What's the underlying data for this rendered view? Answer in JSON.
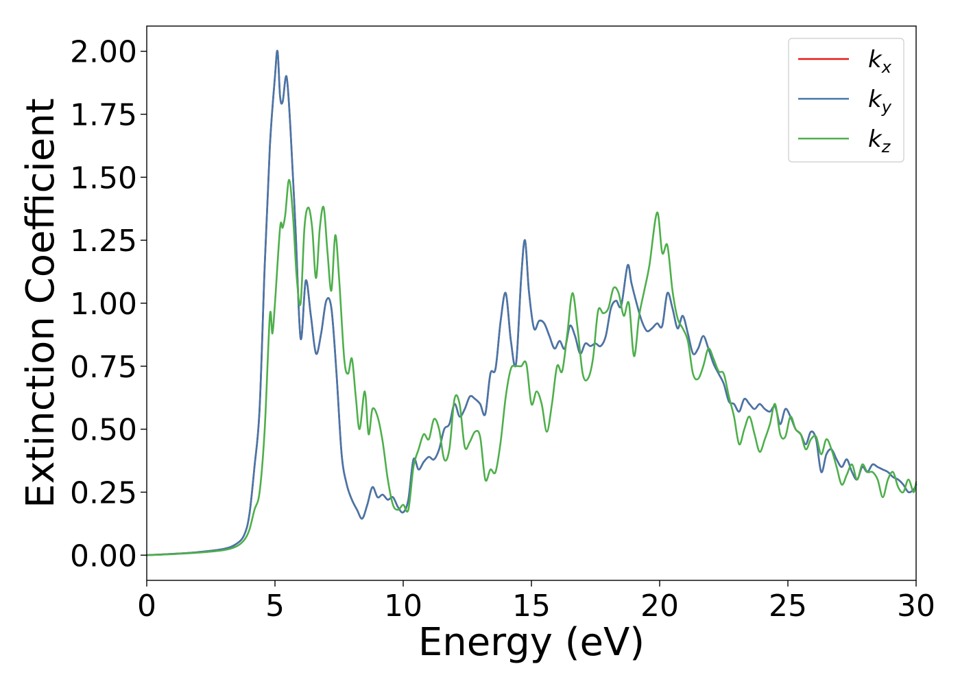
{
  "chart_data": {
    "type": "line",
    "xlabel": "Energy (eV)",
    "ylabel": "Extinction Coefficient",
    "xlim": [
      0,
      30
    ],
    "ylim": [
      -0.1,
      2.1
    ],
    "xticks": [
      0,
      5,
      10,
      15,
      20,
      25,
      30
    ],
    "xtick_labels": [
      "0",
      "5",
      "10",
      "15",
      "20",
      "25",
      "30"
    ],
    "yticks": [
      0,
      0.25,
      0.5,
      0.75,
      1.0,
      1.25,
      1.5,
      1.75,
      2.0
    ],
    "ytick_labels": [
      "0.00",
      "0.25",
      "0.50",
      "0.75",
      "1.00",
      "1.25",
      "1.50",
      "1.75",
      "2.00"
    ],
    "grid": false,
    "legend_position": "top-right",
    "series": [
      {
        "name": "k_x",
        "label_main": "k",
        "label_sub": "x",
        "color": "#e41a1c",
        "x": [
          0,
          1,
          2,
          3,
          3.5,
          3.8,
          4.0,
          4.2,
          4.4,
          4.6,
          4.8,
          5.0,
          5.1,
          5.2,
          5.3,
          5.45,
          5.6,
          5.8,
          6.0,
          6.2,
          6.4,
          6.6,
          6.8,
          7.0,
          7.2,
          7.4,
          7.6,
          7.8,
          8.0,
          8.2,
          8.4,
          8.6,
          8.8,
          9.0,
          9.2,
          9.4,
          9.6,
          9.8,
          10.0,
          10.2,
          10.4,
          10.6,
          10.8,
          11.0,
          11.2,
          11.4,
          11.6,
          11.8,
          12.0,
          12.2,
          12.4,
          12.6,
          12.8,
          13.0,
          13.2,
          13.4,
          13.6,
          13.8,
          14.0,
          14.2,
          14.4,
          14.6,
          14.75,
          14.9,
          15.1,
          15.3,
          15.5,
          15.7,
          15.9,
          16.1,
          16.3,
          16.5,
          16.7,
          16.9,
          17.1,
          17.3,
          17.5,
          17.7,
          17.9,
          18.1,
          18.3,
          18.5,
          18.75,
          18.9,
          19.1,
          19.3,
          19.5,
          19.7,
          19.9,
          20.1,
          20.3,
          20.5,
          20.7,
          20.9,
          21.1,
          21.3,
          21.5,
          21.7,
          21.9,
          22.1,
          22.3,
          22.5,
          22.7,
          22.9,
          23.1,
          23.3,
          23.5,
          23.7,
          23.9,
          24.1,
          24.3,
          24.5,
          24.7,
          24.9,
          25.1,
          25.3,
          25.5,
          25.7,
          25.9,
          26.1,
          26.3,
          26.5,
          26.7,
          26.9,
          27.1,
          27.3,
          27.5,
          27.7,
          27.9,
          28.1,
          28.3,
          28.5,
          28.7,
          28.9,
          29.1,
          29.3,
          29.5,
          29.7,
          29.9,
          30.0
        ],
        "y": [
          0.0,
          0.005,
          0.012,
          0.025,
          0.045,
          0.08,
          0.16,
          0.35,
          0.58,
          1.15,
          1.62,
          1.9,
          2.0,
          1.82,
          1.8,
          1.9,
          1.7,
          1.3,
          0.86,
          1.09,
          0.95,
          0.8,
          0.88,
          1.01,
          0.98,
          0.72,
          0.4,
          0.28,
          0.22,
          0.18,
          0.145,
          0.2,
          0.27,
          0.23,
          0.24,
          0.22,
          0.23,
          0.19,
          0.17,
          0.22,
          0.38,
          0.34,
          0.37,
          0.39,
          0.38,
          0.42,
          0.5,
          0.52,
          0.6,
          0.55,
          0.58,
          0.63,
          0.62,
          0.6,
          0.56,
          0.72,
          0.74,
          0.93,
          1.04,
          0.85,
          0.76,
          1.1,
          1.25,
          1.05,
          0.9,
          0.93,
          0.92,
          0.87,
          0.82,
          0.85,
          0.82,
          0.91,
          0.87,
          0.8,
          0.84,
          0.83,
          0.84,
          0.83,
          0.87,
          0.98,
          1.01,
          0.99,
          1.15,
          1.08,
          1.0,
          0.93,
          0.89,
          0.9,
          0.92,
          0.91,
          1.04,
          0.98,
          0.9,
          0.95,
          0.88,
          0.8,
          0.82,
          0.87,
          0.82,
          0.76,
          0.72,
          0.68,
          0.61,
          0.6,
          0.57,
          0.62,
          0.6,
          0.58,
          0.6,
          0.58,
          0.57,
          0.59,
          0.52,
          0.58,
          0.55,
          0.5,
          0.48,
          0.44,
          0.49,
          0.46,
          0.33,
          0.4,
          0.42,
          0.38,
          0.35,
          0.38,
          0.33,
          0.3,
          0.35,
          0.33,
          0.36,
          0.35,
          0.34,
          0.33,
          0.31,
          0.3,
          0.28,
          0.25,
          0.26,
          0.28
        ]
      },
      {
        "name": "k_y",
        "label_main": "k",
        "label_sub": "y",
        "color": "#4477aa",
        "x": [
          0,
          1,
          2,
          3,
          3.5,
          3.8,
          4.0,
          4.2,
          4.4,
          4.6,
          4.8,
          5.0,
          5.1,
          5.2,
          5.3,
          5.45,
          5.6,
          5.8,
          6.0,
          6.2,
          6.4,
          6.6,
          6.8,
          7.0,
          7.2,
          7.4,
          7.6,
          7.8,
          8.0,
          8.2,
          8.4,
          8.6,
          8.8,
          9.0,
          9.2,
          9.4,
          9.6,
          9.8,
          10.0,
          10.2,
          10.4,
          10.6,
          10.8,
          11.0,
          11.2,
          11.4,
          11.6,
          11.8,
          12.0,
          12.2,
          12.4,
          12.6,
          12.8,
          13.0,
          13.2,
          13.4,
          13.6,
          13.8,
          14.0,
          14.2,
          14.4,
          14.6,
          14.75,
          14.9,
          15.1,
          15.3,
          15.5,
          15.7,
          15.9,
          16.1,
          16.3,
          16.5,
          16.7,
          16.9,
          17.1,
          17.3,
          17.5,
          17.7,
          17.9,
          18.1,
          18.3,
          18.5,
          18.75,
          18.9,
          19.1,
          19.3,
          19.5,
          19.7,
          19.9,
          20.1,
          20.3,
          20.5,
          20.7,
          20.9,
          21.1,
          21.3,
          21.5,
          21.7,
          21.9,
          22.1,
          22.3,
          22.5,
          22.7,
          22.9,
          23.1,
          23.3,
          23.5,
          23.7,
          23.9,
          24.1,
          24.3,
          24.5,
          24.7,
          24.9,
          25.1,
          25.3,
          25.5,
          25.7,
          25.9,
          26.1,
          26.3,
          26.5,
          26.7,
          26.9,
          27.1,
          27.3,
          27.5,
          27.7,
          27.9,
          28.1,
          28.3,
          28.5,
          28.7,
          28.9,
          29.1,
          29.3,
          29.5,
          29.7,
          29.9,
          30.0
        ],
        "y": [
          0.0,
          0.005,
          0.012,
          0.025,
          0.045,
          0.08,
          0.16,
          0.35,
          0.58,
          1.15,
          1.62,
          1.9,
          2.0,
          1.82,
          1.8,
          1.9,
          1.7,
          1.3,
          0.86,
          1.09,
          0.95,
          0.8,
          0.88,
          1.01,
          0.98,
          0.72,
          0.4,
          0.28,
          0.22,
          0.18,
          0.145,
          0.2,
          0.27,
          0.23,
          0.24,
          0.22,
          0.23,
          0.19,
          0.17,
          0.22,
          0.38,
          0.34,
          0.37,
          0.39,
          0.38,
          0.42,
          0.5,
          0.52,
          0.6,
          0.55,
          0.58,
          0.63,
          0.62,
          0.6,
          0.56,
          0.72,
          0.74,
          0.93,
          1.04,
          0.85,
          0.76,
          1.1,
          1.25,
          1.05,
          0.9,
          0.93,
          0.92,
          0.87,
          0.82,
          0.85,
          0.82,
          0.91,
          0.87,
          0.8,
          0.84,
          0.83,
          0.84,
          0.83,
          0.87,
          0.98,
          1.01,
          0.99,
          1.15,
          1.08,
          1.0,
          0.93,
          0.89,
          0.9,
          0.92,
          0.91,
          1.04,
          0.98,
          0.9,
          0.95,
          0.88,
          0.8,
          0.82,
          0.87,
          0.82,
          0.76,
          0.72,
          0.68,
          0.61,
          0.6,
          0.57,
          0.62,
          0.6,
          0.58,
          0.6,
          0.58,
          0.57,
          0.59,
          0.52,
          0.58,
          0.55,
          0.5,
          0.48,
          0.44,
          0.49,
          0.46,
          0.33,
          0.4,
          0.42,
          0.38,
          0.35,
          0.38,
          0.33,
          0.3,
          0.35,
          0.33,
          0.36,
          0.35,
          0.34,
          0.33,
          0.31,
          0.3,
          0.28,
          0.25,
          0.26,
          0.28
        ]
      },
      {
        "name": "k_z",
        "label_main": "k",
        "label_sub": "z",
        "color": "#4daf4a",
        "x": [
          0,
          1,
          2,
          3,
          3.5,
          3.8,
          4.0,
          4.2,
          4.4,
          4.6,
          4.8,
          4.9,
          5.0,
          5.2,
          5.3,
          5.4,
          5.55,
          5.7,
          5.85,
          6.0,
          6.15,
          6.3,
          6.45,
          6.6,
          6.75,
          6.9,
          7.05,
          7.2,
          7.35,
          7.5,
          7.7,
          7.85,
          8.0,
          8.15,
          8.3,
          8.5,
          8.65,
          8.8,
          9.0,
          9.2,
          9.4,
          9.6,
          9.8,
          10.0,
          10.2,
          10.4,
          10.6,
          10.8,
          11.0,
          11.2,
          11.4,
          11.6,
          11.8,
          12.0,
          12.2,
          12.4,
          12.6,
          12.8,
          13.0,
          13.2,
          13.4,
          13.6,
          13.8,
          14.0,
          14.2,
          14.4,
          14.6,
          14.8,
          15.0,
          15.2,
          15.4,
          15.6,
          15.8,
          16.0,
          16.2,
          16.4,
          16.6,
          16.8,
          17.0,
          17.2,
          17.4,
          17.6,
          17.8,
          18.0,
          18.2,
          18.4,
          18.6,
          18.8,
          19.0,
          19.2,
          19.4,
          19.6,
          19.9,
          20.1,
          20.3,
          20.5,
          20.7,
          20.9,
          21.1,
          21.3,
          21.5,
          21.7,
          21.9,
          22.1,
          22.3,
          22.5,
          22.7,
          22.9,
          23.1,
          23.3,
          23.5,
          23.7,
          23.9,
          24.1,
          24.3,
          24.5,
          24.7,
          24.9,
          25.1,
          25.3,
          25.5,
          25.7,
          25.9,
          26.1,
          26.3,
          26.5,
          26.7,
          26.9,
          27.1,
          27.3,
          27.5,
          27.7,
          27.9,
          28.1,
          28.3,
          28.5,
          28.7,
          28.9,
          29.1,
          29.3,
          29.5,
          29.7,
          29.9,
          30.0
        ],
        "y": [
          0.0,
          0.004,
          0.01,
          0.02,
          0.035,
          0.06,
          0.1,
          0.18,
          0.25,
          0.5,
          0.95,
          0.88,
          1.0,
          1.3,
          1.3,
          1.35,
          1.49,
          1.35,
          1.1,
          1.0,
          1.3,
          1.38,
          1.3,
          1.1,
          1.3,
          1.38,
          1.2,
          1.05,
          1.27,
          1.1,
          0.78,
          0.72,
          0.78,
          0.63,
          0.5,
          0.65,
          0.48,
          0.58,
          0.55,
          0.45,
          0.3,
          0.2,
          0.18,
          0.2,
          0.18,
          0.35,
          0.42,
          0.48,
          0.46,
          0.54,
          0.5,
          0.38,
          0.42,
          0.62,
          0.6,
          0.43,
          0.45,
          0.49,
          0.47,
          0.3,
          0.34,
          0.33,
          0.45,
          0.63,
          0.74,
          0.75,
          0.75,
          0.76,
          0.6,
          0.65,
          0.6,
          0.49,
          0.6,
          0.75,
          0.73,
          0.88,
          1.04,
          0.9,
          0.72,
          0.7,
          0.78,
          0.97,
          0.96,
          0.98,
          1.06,
          1.04,
          0.95,
          1.0,
          0.79,
          0.95,
          1.05,
          1.15,
          1.36,
          1.2,
          1.23,
          1.05,
          0.94,
          0.9,
          0.85,
          0.72,
          0.7,
          0.75,
          0.82,
          0.78,
          0.73,
          0.72,
          0.63,
          0.55,
          0.44,
          0.5,
          0.55,
          0.48,
          0.41,
          0.46,
          0.52,
          0.6,
          0.48,
          0.47,
          0.55,
          0.5,
          0.48,
          0.42,
          0.46,
          0.47,
          0.4,
          0.46,
          0.42,
          0.35,
          0.28,
          0.32,
          0.36,
          0.3,
          0.36,
          0.33,
          0.33,
          0.3,
          0.23,
          0.3,
          0.33,
          0.27,
          0.25,
          0.3,
          0.25,
          0.29
        ]
      }
    ]
  }
}
